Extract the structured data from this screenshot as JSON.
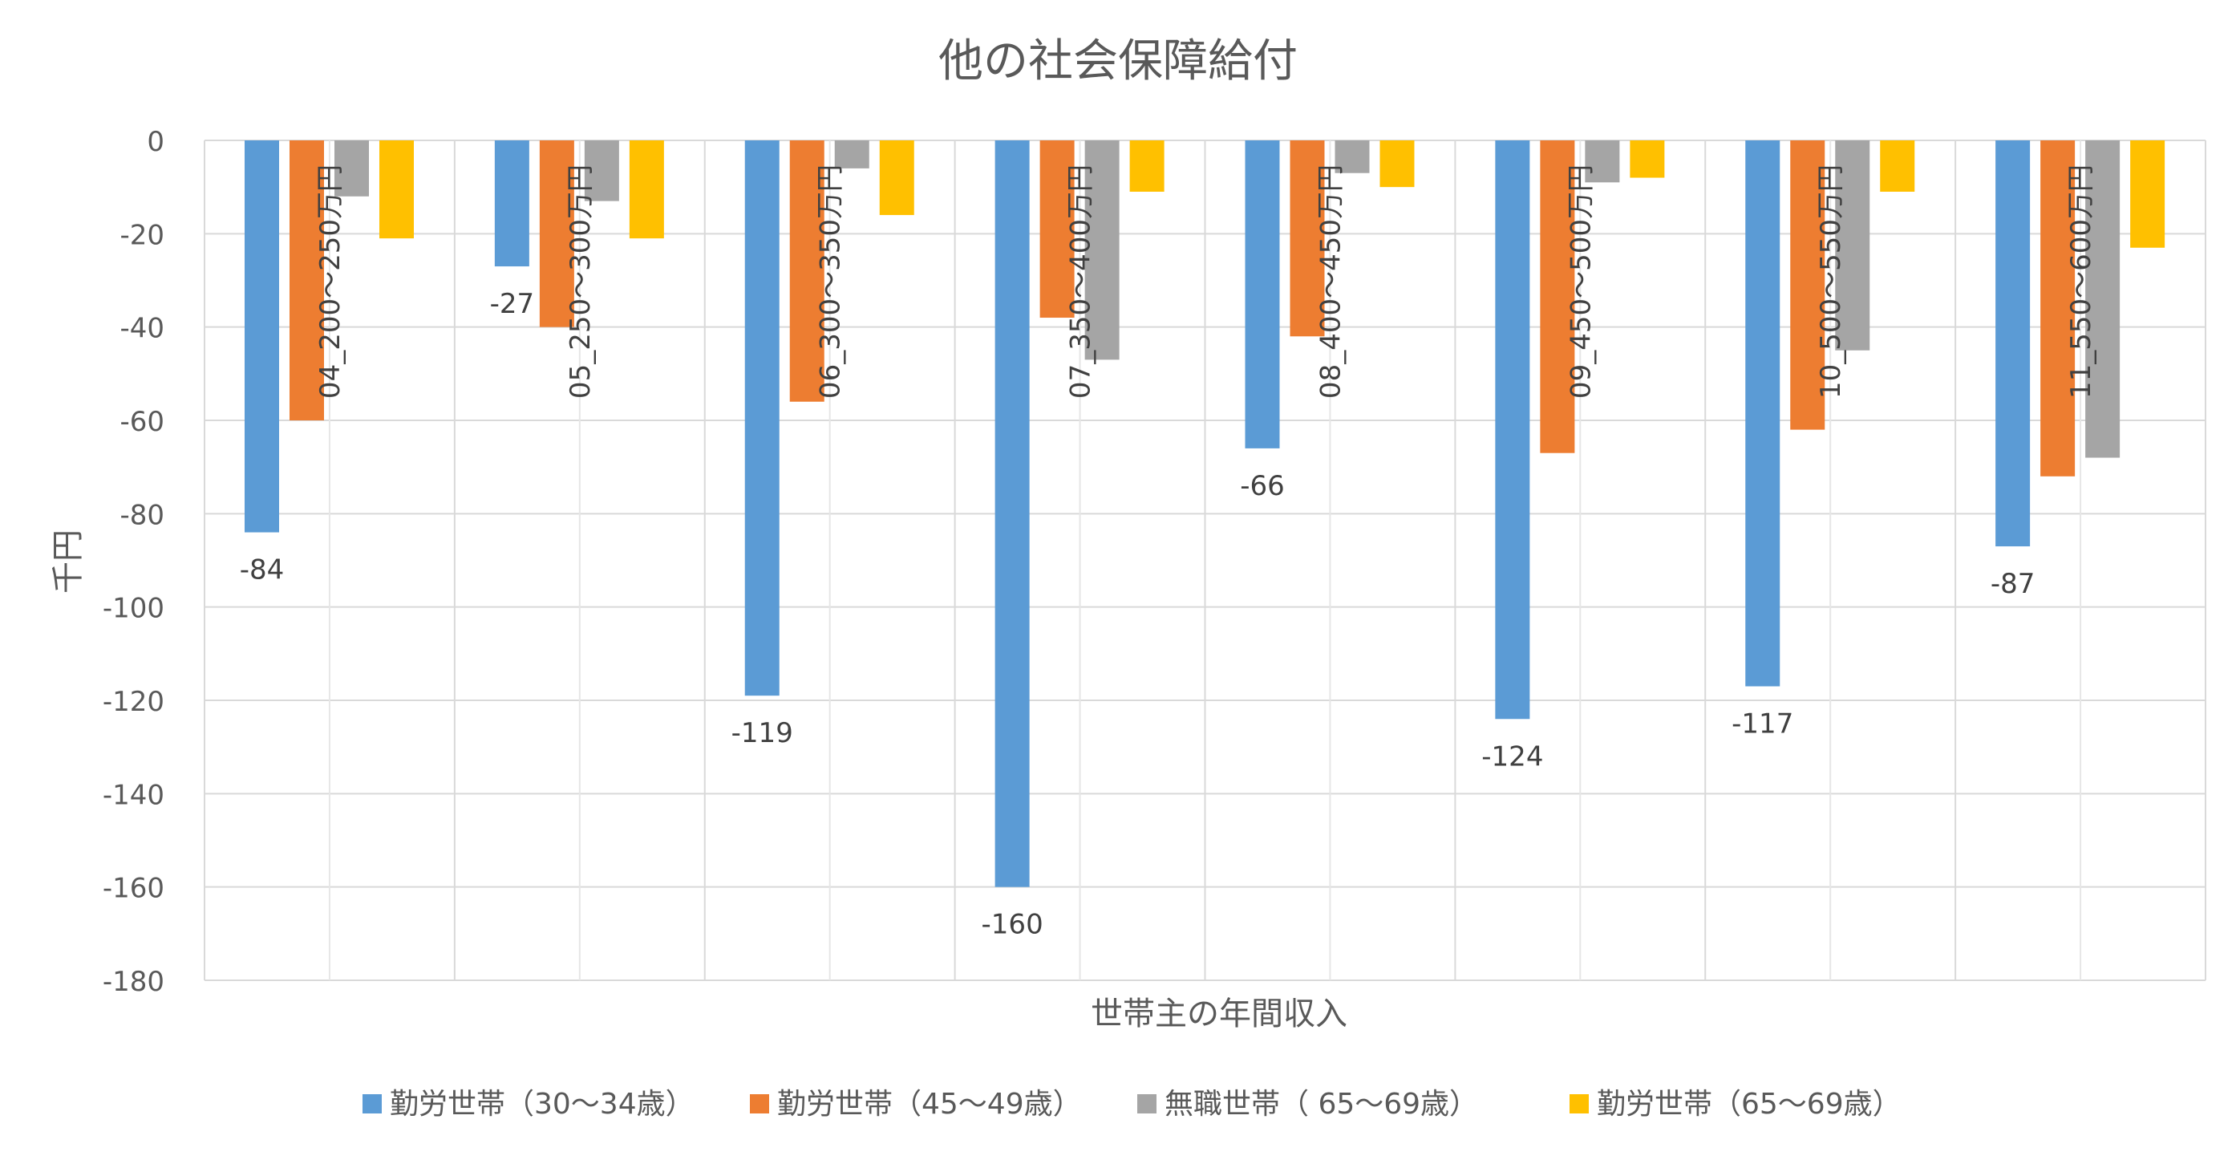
{
  "chart_data": {
    "type": "bar",
    "title": "他の社会保障給付",
    "xlabel": "世帯主の年間収入",
    "ylabel": "千円",
    "ylim": [
      -180,
      0
    ],
    "yticks": [
      0,
      -20,
      -40,
      -60,
      -80,
      -100,
      -120,
      -140,
      -160,
      -180
    ],
    "ytick_labels": [
      "0",
      "-20",
      "-40",
      "-60",
      "-80",
      "-100",
      "-120",
      "-140",
      "-160",
      "-180"
    ],
    "grid": true,
    "legend_position": "bottom",
    "categories": [
      "04_200～250万円",
      "05_250～300万円",
      "06_300～350万円",
      "07_350～400万円",
      "08_400～450万円",
      "09_450～500万円",
      "10_500～550万円",
      "11_550～600万円"
    ],
    "series": [
      {
        "name": "勤労世帯（30～34歳）",
        "color": "#5B9BD5",
        "values": [
          -84,
          -27,
          -119,
          -160,
          -66,
          -124,
          -117,
          -87
        ],
        "labeled": true
      },
      {
        "name": "勤労世帯（45～49歳）",
        "color": "#ED7D31",
        "values": [
          -60,
          -40,
          -56,
          -38,
          -42,
          -67,
          -62,
          -72
        ],
        "labeled": false
      },
      {
        "name": "無職世帯（ 65～69歳）",
        "color": "#A5A5A5",
        "values": [
          -12,
          -13,
          -6,
          -47,
          -7,
          -9,
          -45,
          -68
        ],
        "labeled": false
      },
      {
        "name": "勤労世帯（65～69歳）",
        "color": "#FFC000",
        "values": [
          -21,
          -21,
          -16,
          -11,
          -10,
          -8,
          -11,
          -23
        ],
        "labeled": false
      }
    ]
  }
}
